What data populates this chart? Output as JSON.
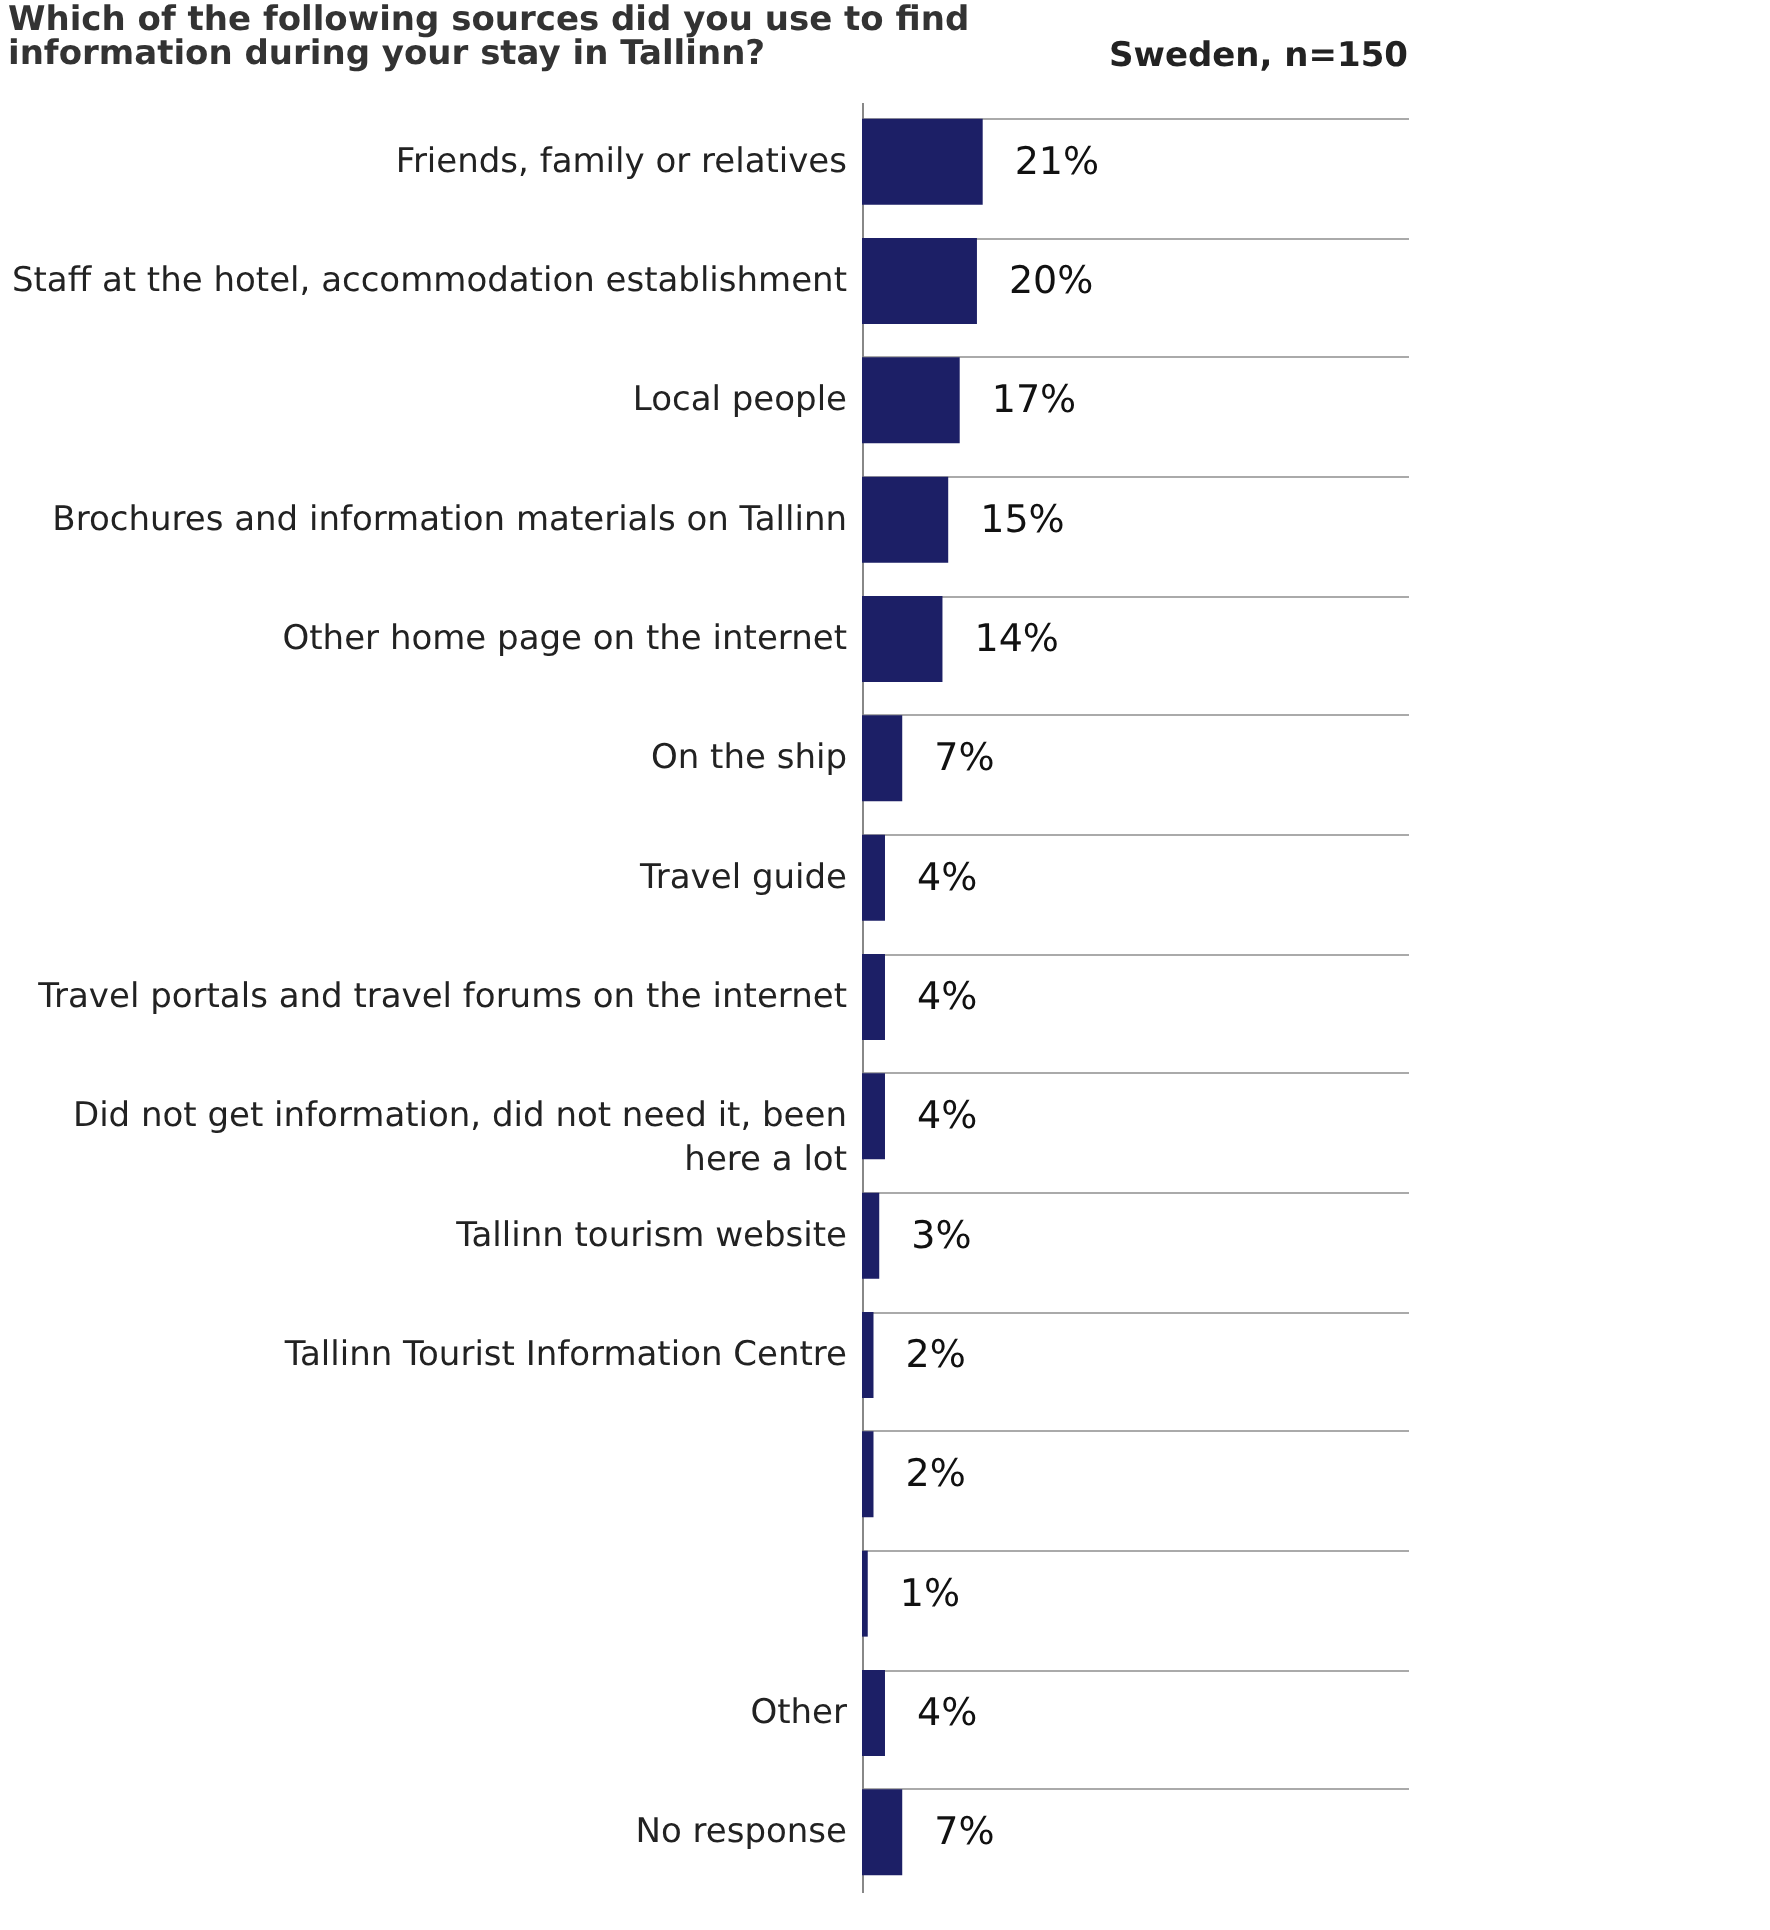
{
  "chart_data": {
    "type": "bar",
    "orientation": "horizontal",
    "title": "Which of the following sources did you use to find information during your stay in Tallinn?",
    "subtitle": "Sweden, n=150",
    "categories": [
      "Friends, family or relatives",
      "Staff at the hotel, accommodation establishment",
      "Local people",
      "Brochures and information materials on Tallinn",
      "Other home page on the internet",
      "On the ship",
      "Travel guide",
      "Travel portals and travel forums on the internet",
      "Did not get information, did not need it, been here a lot",
      "Tallinn tourism website",
      "Tallinn Tourist Information Centre",
      null,
      null,
      "Other",
      "No response"
    ],
    "values": [
      21,
      20,
      17,
      15,
      14,
      7,
      4,
      4,
      4,
      3,
      2,
      2,
      1,
      4,
      7
    ],
    "value_labels": [
      "21%",
      "20%",
      "17%",
      "15%",
      "14%",
      "7%",
      "4%",
      "4%",
      "4%",
      "3%",
      "2%",
      "2%",
      "1%",
      "4%",
      "7%"
    ],
    "color": "#1c1f66",
    "xlim": [
      0,
      95
    ],
    "tick_labels": "y",
    "grid": "y"
  }
}
